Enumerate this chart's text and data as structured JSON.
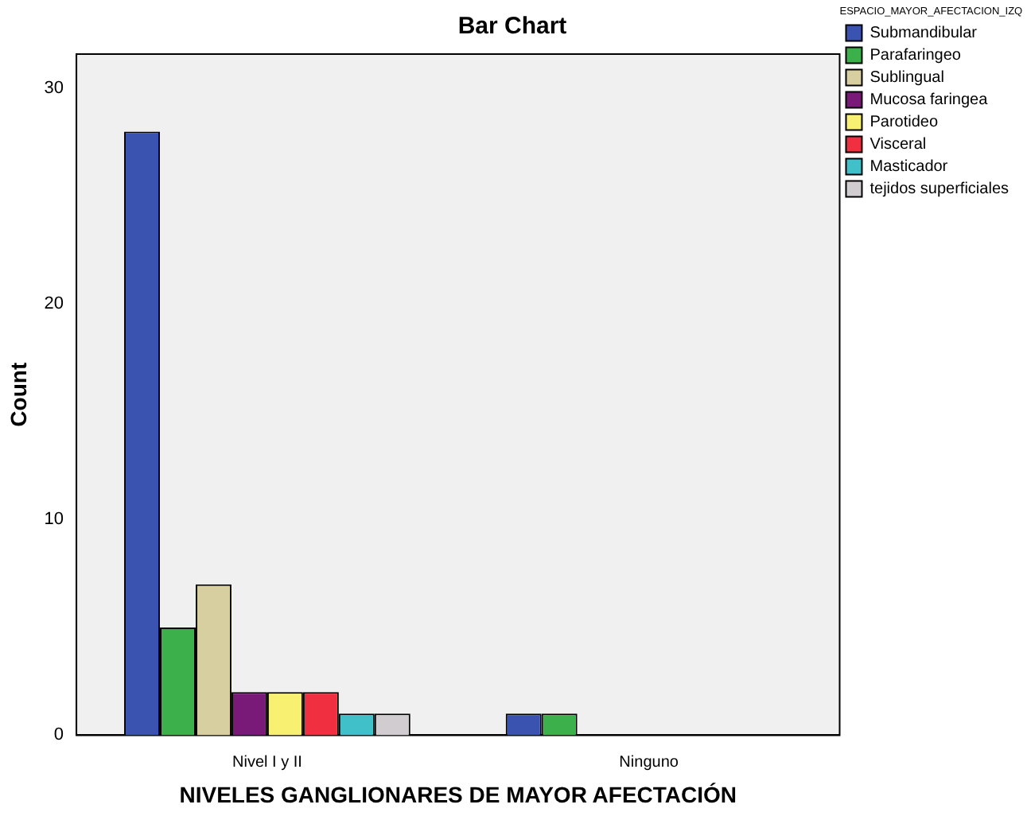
{
  "chart_data": {
    "type": "bar",
    "title": "Bar Chart",
    "xlabel": "NIVELES GANGLIONARES DE MAYOR AFECTACIÓN",
    "ylabel": "Count",
    "legend_title": "ESPACIO_MAYOR_AFECTACION_IZQ",
    "categories": [
      "Nivel I y II",
      "Ninguno"
    ],
    "series": [
      {
        "name": "Submandibular",
        "color": "#3a52b0",
        "values": [
          28,
          1
        ]
      },
      {
        "name": "Parafaringeo",
        "color": "#3cb04a",
        "values": [
          5,
          1
        ]
      },
      {
        "name": "Sublingual",
        "color": "#d8cfa0",
        "values": [
          7,
          0
        ]
      },
      {
        "name": "Mucosa faringea",
        "color": "#7a1a78",
        "values": [
          2,
          0
        ]
      },
      {
        "name": "Parotideo",
        "color": "#f8f070",
        "values": [
          2,
          0
        ]
      },
      {
        "name": "Visceral",
        "color": "#f03040",
        "values": [
          2,
          0
        ]
      },
      {
        "name": "Masticador",
        "color": "#40c0c8",
        "values": [
          1,
          0
        ]
      },
      {
        "name": "tejidos superficiales",
        "color": "#d0ccd0",
        "values": [
          1,
          0
        ]
      }
    ],
    "ylim": [
      0,
      31.6
    ],
    "yticks": [
      0,
      10,
      20,
      30
    ],
    "grid": false,
    "legend": "top right"
  }
}
